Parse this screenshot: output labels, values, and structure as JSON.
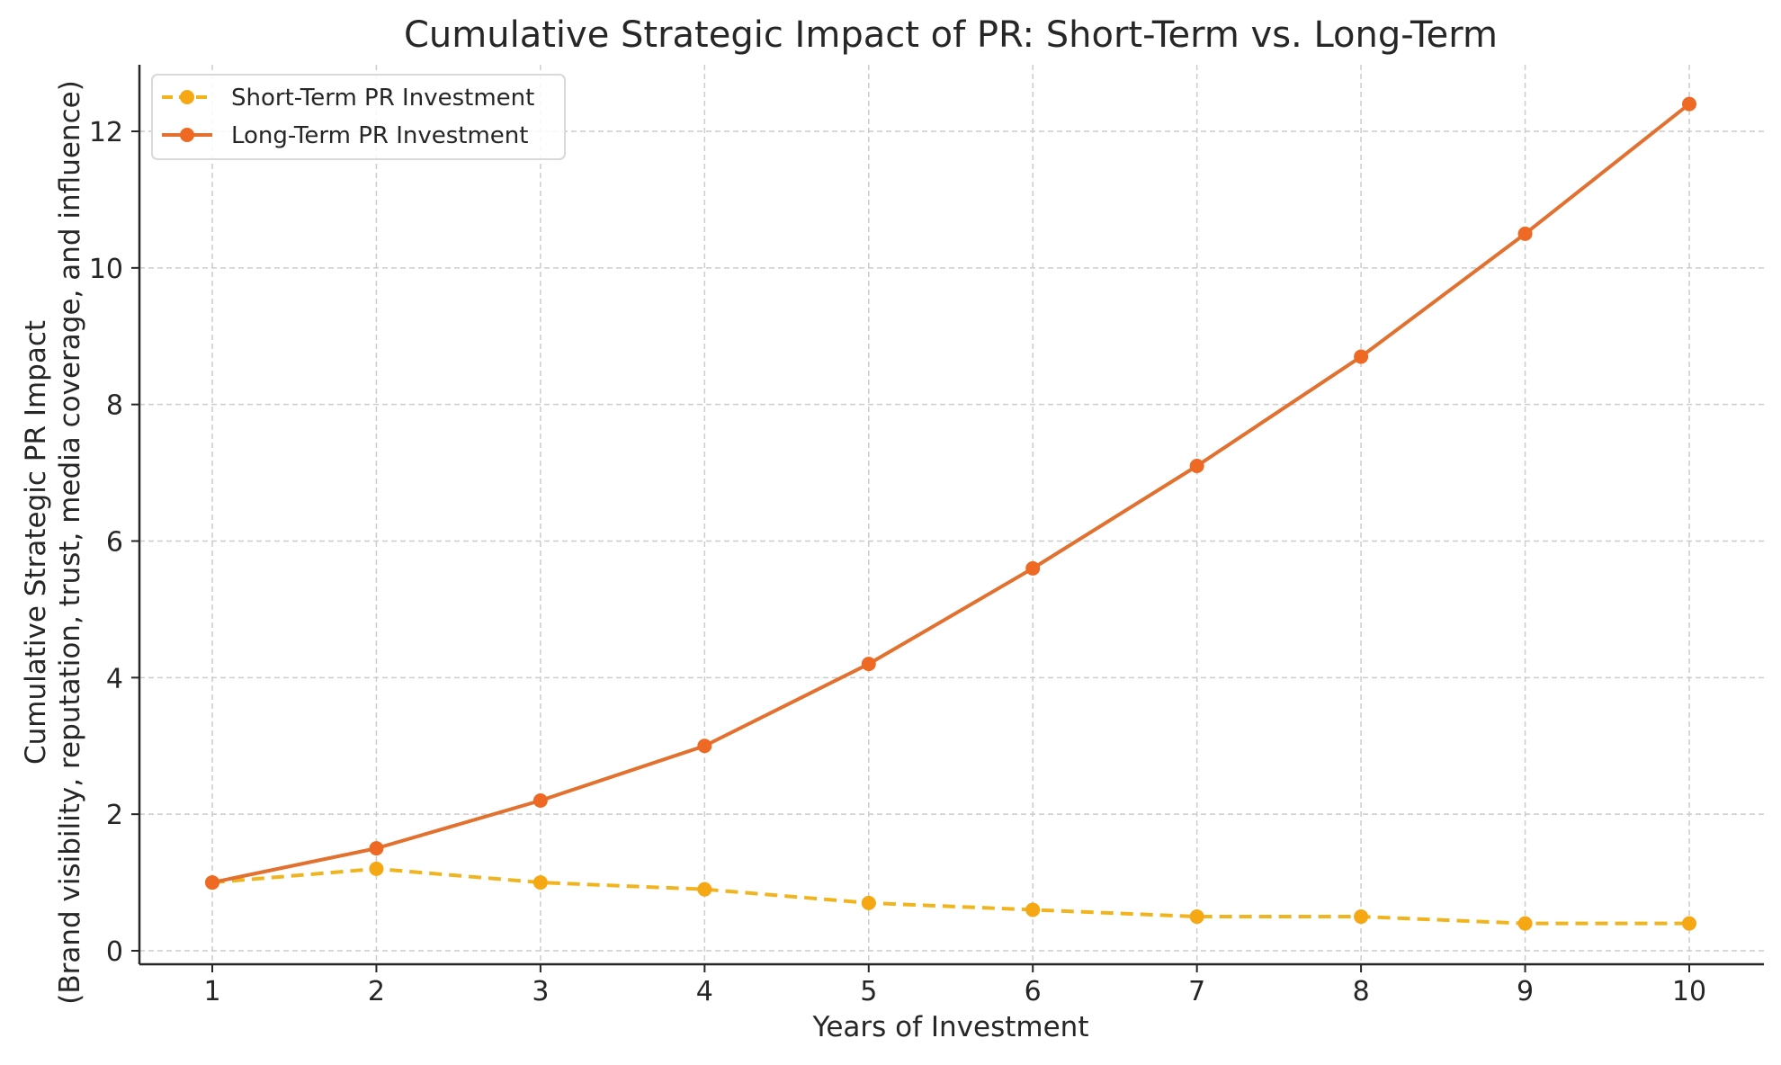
{
  "chart_data": {
    "type": "line",
    "title": "Cumulative Strategic Impact of PR: Short-Term vs. Long-Term",
    "xlabel": "Years of Investment",
    "ylabel_line1": "Cumulative Strategic PR Impact",
    "ylabel_line2": "(Brand visibility, reputation, trust, media coverage, and influence)",
    "x": [
      1,
      2,
      3,
      4,
      5,
      6,
      7,
      8,
      9,
      10
    ],
    "xticks": [
      "1",
      "2",
      "3",
      "4",
      "5",
      "6",
      "7",
      "8",
      "9",
      "10"
    ],
    "yticks": [
      "0",
      "2",
      "4",
      "6",
      "8",
      "10",
      "12"
    ],
    "xlim": [
      0.56,
      10.45
    ],
    "ylim": [
      -0.2,
      13.0
    ],
    "grid": true,
    "legend_position": "top-left",
    "series": [
      {
        "name": "Short-Term PR Investment",
        "values": [
          1.0,
          1.2,
          1.0,
          0.9,
          0.7,
          0.6,
          0.5,
          0.5,
          0.4,
          0.4
        ],
        "color": "#f0b41e",
        "marker_color": "#f5a814",
        "style": "dashed"
      },
      {
        "name": "Long-Term PR Investment",
        "values": [
          1.0,
          1.5,
          2.2,
          3.0,
          4.2,
          5.6,
          7.1,
          8.7,
          10.5,
          12.4
        ],
        "color": "#e2702e",
        "marker_color": "#ee6a24",
        "style": "solid"
      }
    ]
  }
}
